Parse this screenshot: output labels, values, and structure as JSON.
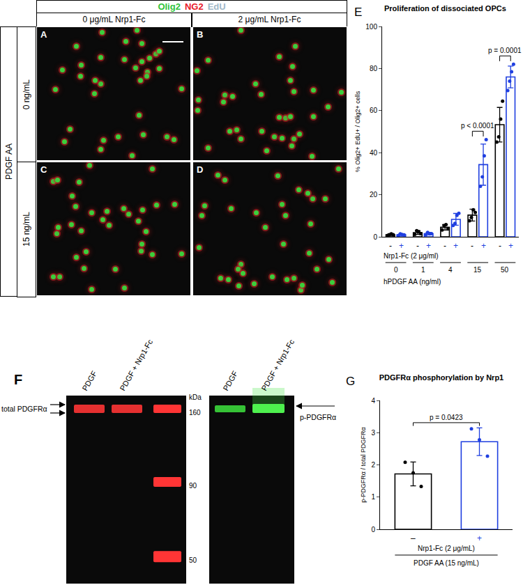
{
  "figure": {
    "micrographs": {
      "channels": [
        {
          "text": "Olig2",
          "color": "#2fc43a"
        },
        {
          "text": "NG2",
          "color": "#e8202a"
        },
        {
          "text": "EdU",
          "color": "#9fb8c8"
        }
      ],
      "columns": [
        "0 μg/mL Nrp1-Fc",
        "2 μg/mL Nrp1-Fc"
      ],
      "row_title": "PDGF AA",
      "rows": [
        "0 ng/mL",
        "15 ng/mL"
      ],
      "panels": [
        [
          "A",
          "B"
        ],
        [
          "C",
          "D"
        ]
      ]
    },
    "blot": {
      "panel": "F",
      "lanes": [
        "PDGF",
        "PDGF + Nrp1-Fc"
      ],
      "left_blot_label": "total PDGFRα",
      "right_blot_label": "p-PDGFRα",
      "marker_unit": "kDa",
      "markers": [
        160,
        90,
        50
      ]
    }
  },
  "chart_data": [
    {
      "type": "bar",
      "panel": "E",
      "title": "Proliferation of dissociated OPCs",
      "y_label": "% Olig2+ EdU+ / Olig2+ cells",
      "group_label": "Nrp1-Fc (2 μg/ml)",
      "x_label": "hPDGF AA (ng/ml)",
      "categories": [
        "0",
        "1",
        "4",
        "15",
        "50"
      ],
      "series": [
        {
          "name": "-",
          "color": "#000000",
          "values": [
            1,
            2,
            4.5,
            10.3,
            53.3
          ],
          "error": [
            0.4,
            0.9,
            1.3,
            2.8,
            8.2
          ],
          "points": [
            [
              0.6,
              1.0,
              1.4,
              1.0
            ],
            [
              1.2,
              2.9,
              2.4,
              1.5
            ],
            [
              3.2,
              5.3,
              5.8,
              3.7
            ],
            [
              7.6,
              9.2,
              12.8,
              11.6
            ],
            [
              45,
              47.5,
              56,
              64.5
            ]
          ]
        },
        {
          "name": "+",
          "color": "#1f3fe0",
          "values": [
            1,
            1.5,
            8.3,
            34.3,
            76
          ],
          "error": [
            0.4,
            0.6,
            2.8,
            9.8,
            5.2
          ],
          "points": [
            [
              0.6,
              1.4,
              1.1,
              0.9
            ],
            [
              1.0,
              2.1,
              1.4,
              1.5
            ],
            [
              5.4,
              6.4,
              10.2,
              11.2
            ],
            [
              24,
              28.5,
              38.5,
              46.2
            ],
            [
              69.5,
              74,
              78.5,
              82
            ]
          ]
        }
      ],
      "ylim": [
        0,
        100
      ],
      "yticks": [
        0,
        20,
        40,
        60,
        80,
        100
      ],
      "annotations": [
        {
          "category": "15",
          "text": "p < 0.0001"
        },
        {
          "category": "50",
          "text": "p = 0.0001"
        }
      ]
    },
    {
      "type": "bar",
      "panel": "G",
      "title": "PDGFRα phosphorylation by Nrp1",
      "y_label": "p-PDGFRα / total PDGFRα",
      "group_label": "Nrp1-Fc (2 μg/mL)",
      "x_label": "PDGF AA (15 ng/mL)",
      "categories": [
        "–",
        "+"
      ],
      "values": [
        1.72,
        2.72
      ],
      "colors": [
        "#000000",
        "#1f3fe0"
      ],
      "error": [
        0.37,
        0.43
      ],
      "points": [
        [
          2.08,
          1.75,
          1.33
        ],
        [
          3.12,
          2.78,
          2.27
        ]
      ],
      "ylim": [
        0,
        4
      ],
      "yticks": [
        0,
        1,
        2,
        3,
        4
      ],
      "annotations": [
        {
          "text": "p = 0.0423"
        }
      ]
    }
  ]
}
